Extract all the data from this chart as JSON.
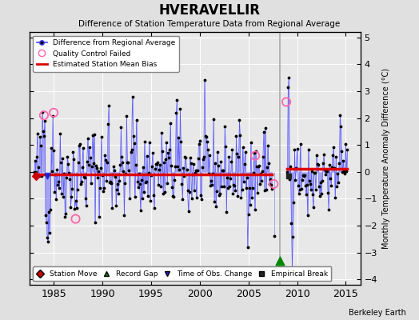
{
  "title": "HVERAVELLIR",
  "subtitle": "Difference of Station Temperature Data from Regional Average",
  "ylabel": "Monthly Temperature Anomaly Difference (°C)",
  "xlabel_credit": "Berkeley Earth",
  "xlim": [
    1982.5,
    2016.5
  ],
  "ylim": [
    -4.2,
    5.2
  ],
  "yticks": [
    -4,
    -3,
    -2,
    -1,
    0,
    1,
    2,
    3,
    4,
    5
  ],
  "xticks": [
    1985,
    1990,
    1995,
    2000,
    2005,
    2010,
    2015
  ],
  "bias_line_y1": -0.1,
  "bias_line_y2": 0.12,
  "bias_break_x": 2008.2,
  "gap_start": 2007.5,
  "gap_end": 2008.8,
  "background_color": "#e0e0e0",
  "plot_bg_color": "#e8e8e8",
  "line_color": "#4444ff",
  "dot_color": "#000000",
  "bias_color": "#dd0000",
  "qc_color": "#ff66aa",
  "station_move_color": "#cc0000",
  "record_gap_color": "#008800",
  "tobs_color": "#2222cc",
  "empirical_color": "#222222",
  "gap_line_color": "#aaaaaa"
}
